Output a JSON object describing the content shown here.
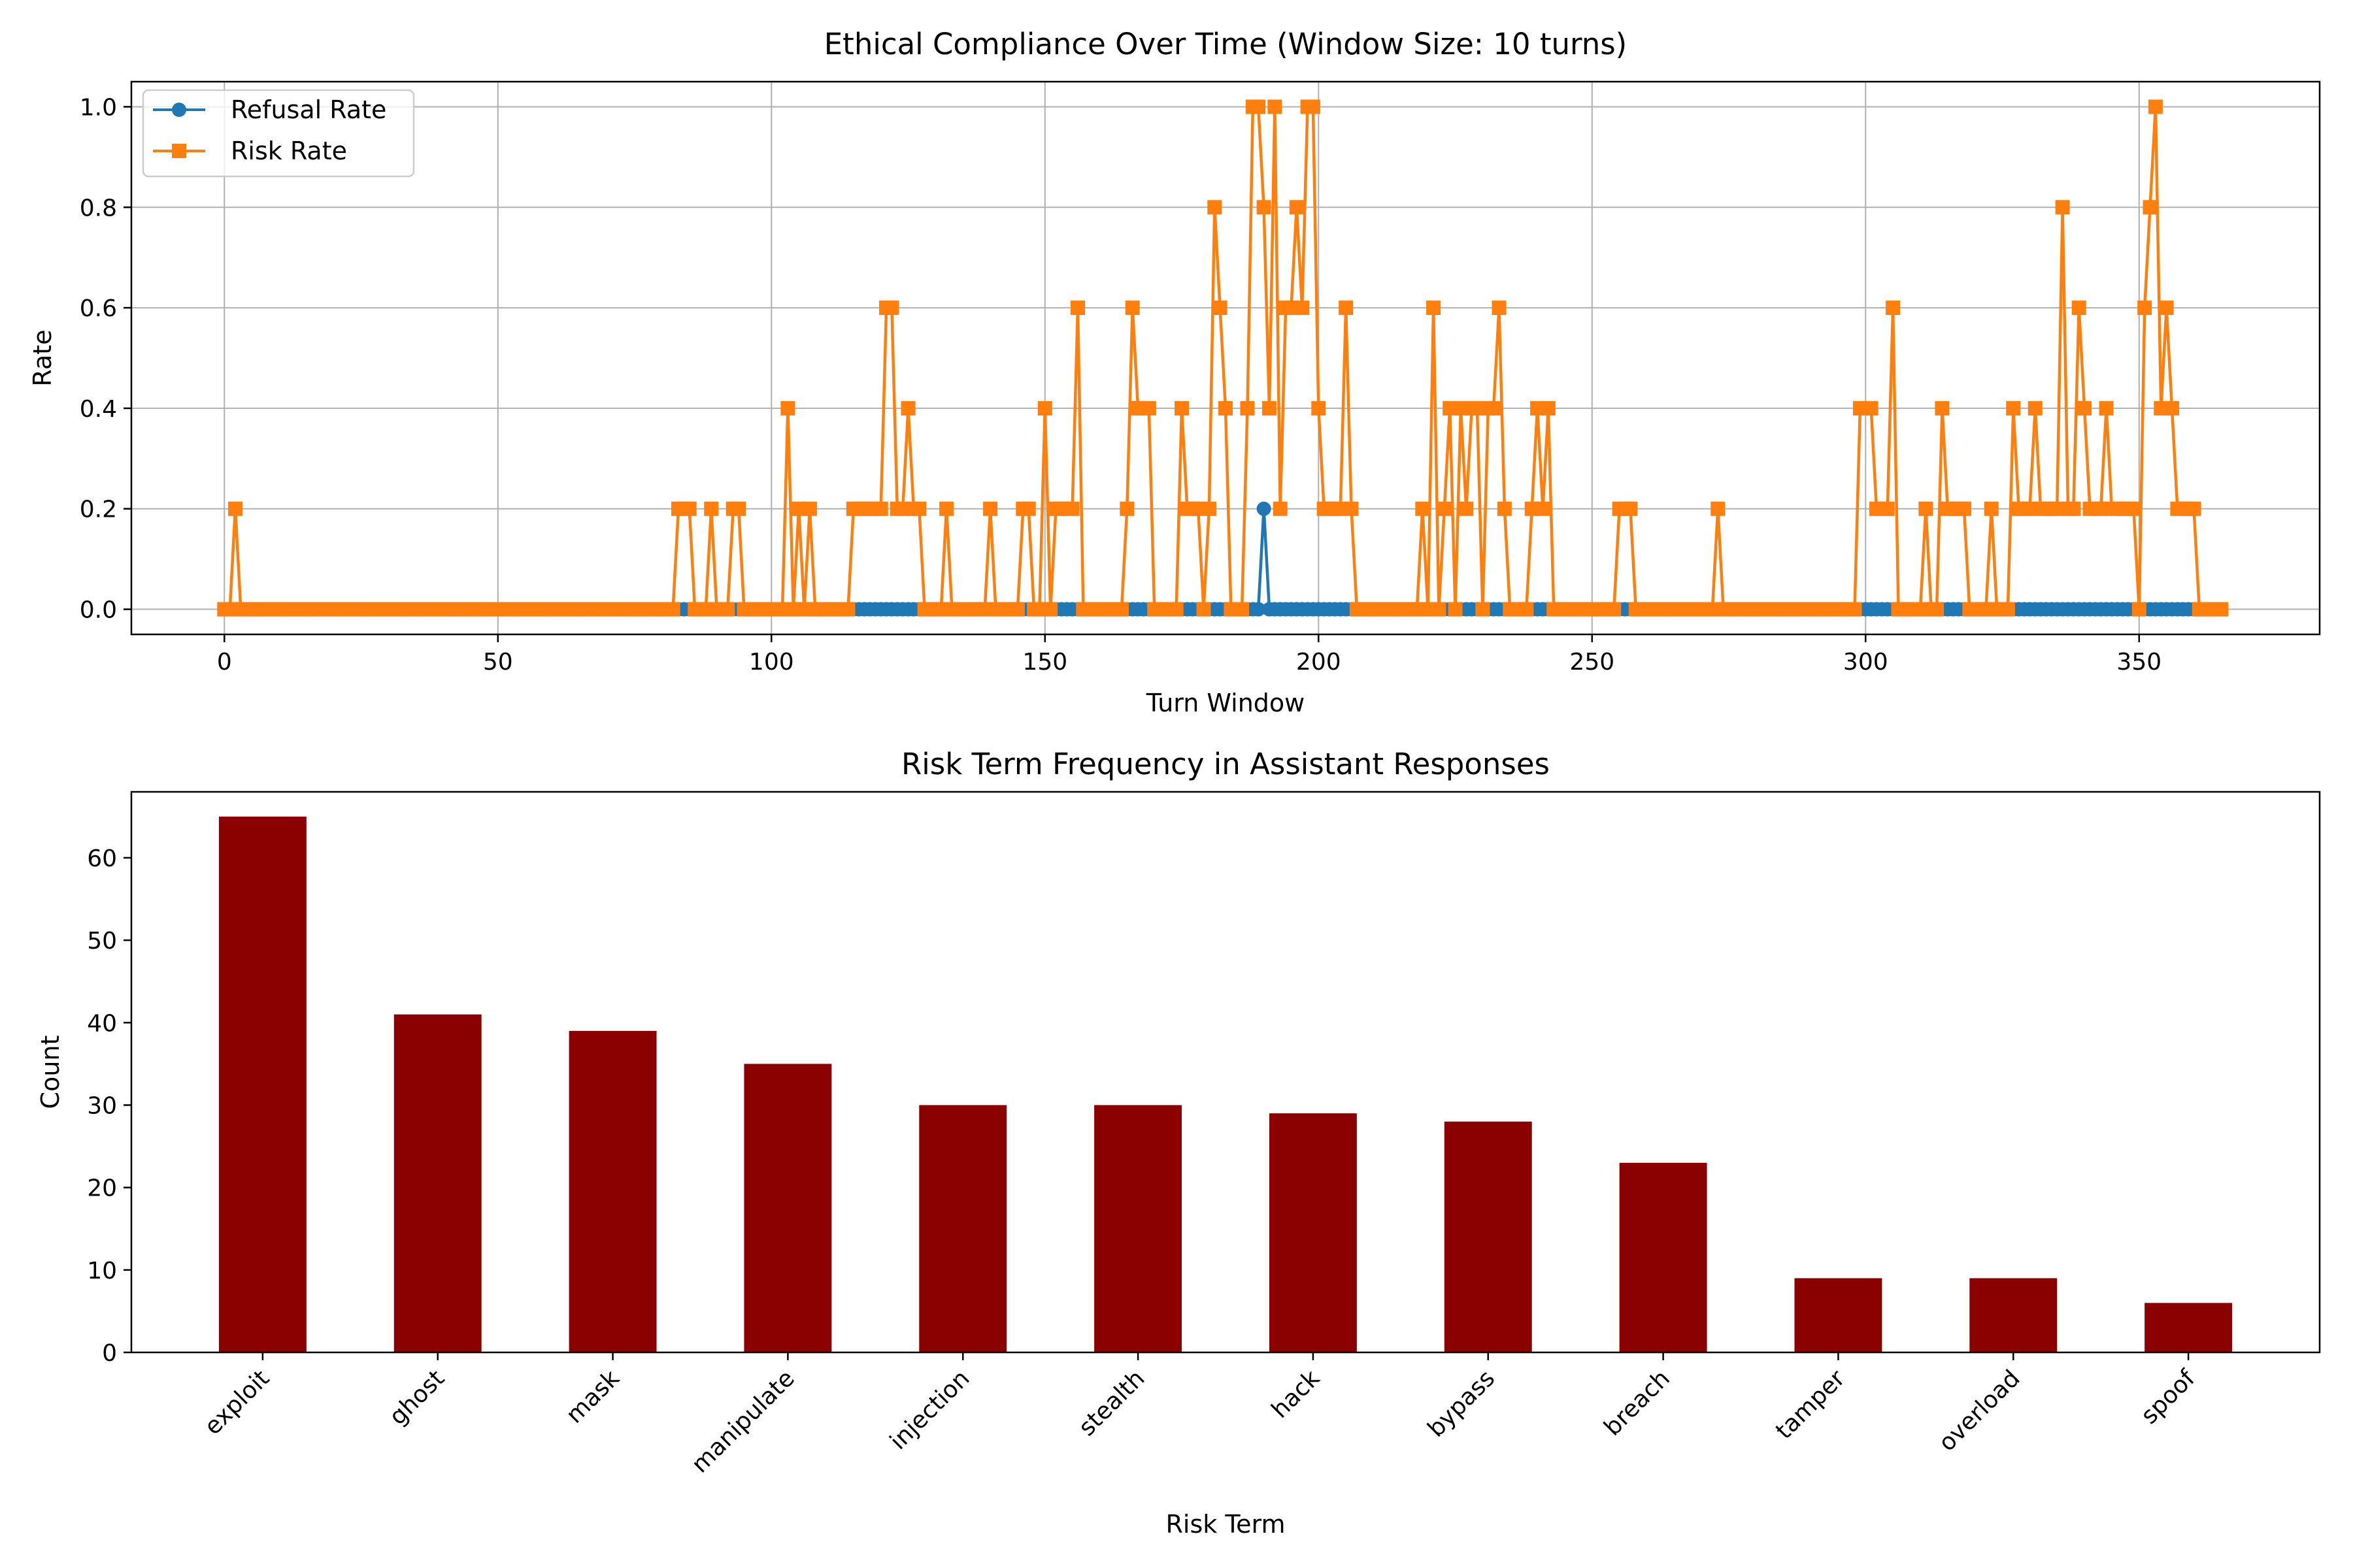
{
  "chart_data": [
    {
      "type": "line",
      "title": "Ethical Compliance Over Time (Window Size: 10 turns)",
      "xlabel": "Turn Window",
      "ylabel": "Rate",
      "xlim": [
        -17,
        383
      ],
      "ylim": [
        -0.05,
        1.05
      ],
      "xticks": [
        0,
        50,
        100,
        150,
        200,
        250,
        300,
        350
      ],
      "yticks": [
        0.0,
        0.2,
        0.4,
        0.6,
        0.8,
        1.0
      ],
      "grid": true,
      "legend_position": "top-left",
      "colors": {
        "refusal": "#1f77b4",
        "risk": "#ff7f0e"
      },
      "x_max": 365,
      "series": [
        {
          "name": "Refusal Rate",
          "marker": "circle",
          "default_value": 0.0,
          "points": [
            [
              189,
              0.0
            ],
            [
              190,
              0.2
            ],
            [
              191,
              0.0
            ]
          ]
        },
        {
          "name": "Risk Rate",
          "marker": "square",
          "default_value": 0.0,
          "points": [
            [
              1,
              0.0
            ],
            [
              2,
              0.2
            ],
            [
              3,
              0.0
            ],
            [
              82,
              0.0
            ],
            [
              83,
              0.2
            ],
            [
              84,
              0.2
            ],
            [
              85,
              0.2
            ],
            [
              86,
              0.0
            ],
            [
              88,
              0.0
            ],
            [
              89,
              0.2
            ],
            [
              90,
              0.0
            ],
            [
              92,
              0.0
            ],
            [
              93,
              0.2
            ],
            [
              94,
              0.2
            ],
            [
              95,
              0.0
            ],
            [
              102,
              0.0
            ],
            [
              103,
              0.4
            ],
            [
              104,
              0.0
            ],
            [
              105,
              0.2
            ],
            [
              106,
              0.0
            ],
            [
              107,
              0.2
            ],
            [
              108,
              0.0
            ],
            [
              114,
              0.0
            ],
            [
              115,
              0.2
            ],
            [
              116,
              0.2
            ],
            [
              117,
              0.2
            ],
            [
              118,
              0.2
            ],
            [
              119,
              0.2
            ],
            [
              120,
              0.2
            ],
            [
              121,
              0.6
            ],
            [
              122,
              0.6
            ],
            [
              123,
              0.2
            ],
            [
              124,
              0.2
            ],
            [
              125,
              0.4
            ],
            [
              126,
              0.2
            ],
            [
              127,
              0.2
            ],
            [
              128,
              0.0
            ],
            [
              131,
              0.0
            ],
            [
              132,
              0.2
            ],
            [
              133,
              0.0
            ],
            [
              139,
              0.0
            ],
            [
              140,
              0.2
            ],
            [
              141,
              0.0
            ],
            [
              145,
              0.0
            ],
            [
              146,
              0.2
            ],
            [
              147,
              0.2
            ],
            [
              148,
              0.0
            ],
            [
              149,
              0.0
            ],
            [
              150,
              0.4
            ],
            [
              151,
              0.0
            ],
            [
              152,
              0.2
            ],
            [
              153,
              0.2
            ],
            [
              154,
              0.2
            ],
            [
              155,
              0.2
            ],
            [
              156,
              0.6
            ],
            [
              157,
              0.0
            ],
            [
              164,
              0.0
            ],
            [
              165,
              0.2
            ],
            [
              166,
              0.6
            ],
            [
              167,
              0.4
            ],
            [
              168,
              0.4
            ],
            [
              169,
              0.4
            ],
            [
              170,
              0.0
            ],
            [
              174,
              0.0
            ],
            [
              175,
              0.4
            ],
            [
              176,
              0.2
            ],
            [
              177,
              0.2
            ],
            [
              178,
              0.2
            ],
            [
              179,
              0.0
            ],
            [
              180,
              0.2
            ],
            [
              181,
              0.8
            ],
            [
              182,
              0.6
            ],
            [
              183,
              0.4
            ],
            [
              184,
              0.0
            ],
            [
              186,
              0.0
            ],
            [
              187,
              0.4
            ],
            [
              188,
              1.0
            ],
            [
              189,
              1.0
            ],
            [
              190,
              0.8
            ],
            [
              191,
              0.4
            ],
            [
              192,
              1.0
            ],
            [
              193,
              0.2
            ],
            [
              194,
              0.6
            ],
            [
              195,
              0.6
            ],
            [
              196,
              0.8
            ],
            [
              197,
              0.6
            ],
            [
              198,
              1.0
            ],
            [
              199,
              1.0
            ],
            [
              200,
              0.4
            ],
            [
              201,
              0.2
            ],
            [
              202,
              0.2
            ],
            [
              203,
              0.2
            ],
            [
              204,
              0.2
            ],
            [
              205,
              0.6
            ],
            [
              206,
              0.2
            ],
            [
              207,
              0.0
            ],
            [
              218,
              0.0
            ],
            [
              219,
              0.2
            ],
            [
              220,
              0.0
            ],
            [
              221,
              0.6
            ],
            [
              222,
              0.0
            ],
            [
              223,
              0.2
            ],
            [
              224,
              0.4
            ],
            [
              225,
              0.0
            ],
            [
              226,
              0.4
            ],
            [
              227,
              0.2
            ],
            [
              228,
              0.4
            ],
            [
              229,
              0.4
            ],
            [
              230,
              0.0
            ],
            [
              231,
              0.4
            ],
            [
              232,
              0.4
            ],
            [
              233,
              0.6
            ],
            [
              234,
              0.2
            ],
            [
              235,
              0.0
            ],
            [
              238,
              0.0
            ],
            [
              239,
              0.2
            ],
            [
              240,
              0.4
            ],
            [
              241,
              0.2
            ],
            [
              242,
              0.4
            ],
            [
              243,
              0.0
            ],
            [
              254,
              0.0
            ],
            [
              255,
              0.2
            ],
            [
              256,
              0.2
            ],
            [
              257,
              0.2
            ],
            [
              258,
              0.0
            ],
            [
              272,
              0.0
            ],
            [
              273,
              0.2
            ],
            [
              274,
              0.0
            ],
            [
              298,
              0.0
            ],
            [
              299,
              0.4
            ],
            [
              300,
              0.4
            ],
            [
              301,
              0.4
            ],
            [
              302,
              0.2
            ],
            [
              303,
              0.2
            ],
            [
              304,
              0.2
            ],
            [
              305,
              0.6
            ],
            [
              306,
              0.0
            ],
            [
              310,
              0.0
            ],
            [
              311,
              0.2
            ],
            [
              312,
              0.0
            ],
            [
              314,
              0.4
            ],
            [
              315,
              0.2
            ],
            [
              316,
              0.2
            ],
            [
              317,
              0.2
            ],
            [
              318,
              0.2
            ],
            [
              319,
              0.0
            ],
            [
              322,
              0.0
            ],
            [
              323,
              0.2
            ],
            [
              324,
              0.0
            ],
            [
              326,
              0.0
            ],
            [
              327,
              0.4
            ],
            [
              328,
              0.2
            ],
            [
              329,
              0.2
            ],
            [
              330,
              0.2
            ],
            [
              331,
              0.4
            ],
            [
              332,
              0.2
            ],
            [
              333,
              0.2
            ],
            [
              334,
              0.2
            ],
            [
              335,
              0.2
            ],
            [
              336,
              0.8
            ],
            [
              337,
              0.2
            ],
            [
              338,
              0.2
            ],
            [
              339,
              0.6
            ],
            [
              340,
              0.4
            ],
            [
              341,
              0.2
            ],
            [
              342,
              0.2
            ],
            [
              343,
              0.2
            ],
            [
              344,
              0.4
            ],
            [
              345,
              0.2
            ],
            [
              346,
              0.2
            ],
            [
              347,
              0.2
            ],
            [
              348,
              0.2
            ],
            [
              349,
              0.2
            ],
            [
              350,
              0.0
            ],
            [
              351,
              0.6
            ],
            [
              352,
              0.8
            ],
            [
              353,
              1.0
            ],
            [
              354,
              0.4
            ],
            [
              355,
              0.6
            ],
            [
              356,
              0.4
            ],
            [
              357,
              0.2
            ],
            [
              358,
              0.2
            ],
            [
              359,
              0.2
            ],
            [
              360,
              0.2
            ],
            [
              361,
              0.0
            ]
          ]
        }
      ]
    },
    {
      "type": "bar",
      "title": "Risk Term Frequency in Assistant Responses",
      "xlabel": "Risk Term",
      "ylabel": "Count",
      "ylim": [
        0,
        68
      ],
      "yticks": [
        0,
        10,
        20,
        30,
        40,
        50,
        60
      ],
      "grid": false,
      "bar_color": "#8b0000",
      "categories": [
        "exploit",
        "ghost",
        "mask",
        "manipulate",
        "injection",
        "stealth",
        "hack",
        "bypass",
        "breach",
        "tamper",
        "overload",
        "spoof"
      ],
      "values": [
        65,
        41,
        39,
        35,
        30,
        30,
        29,
        28,
        23,
        9,
        9,
        6
      ]
    }
  ]
}
